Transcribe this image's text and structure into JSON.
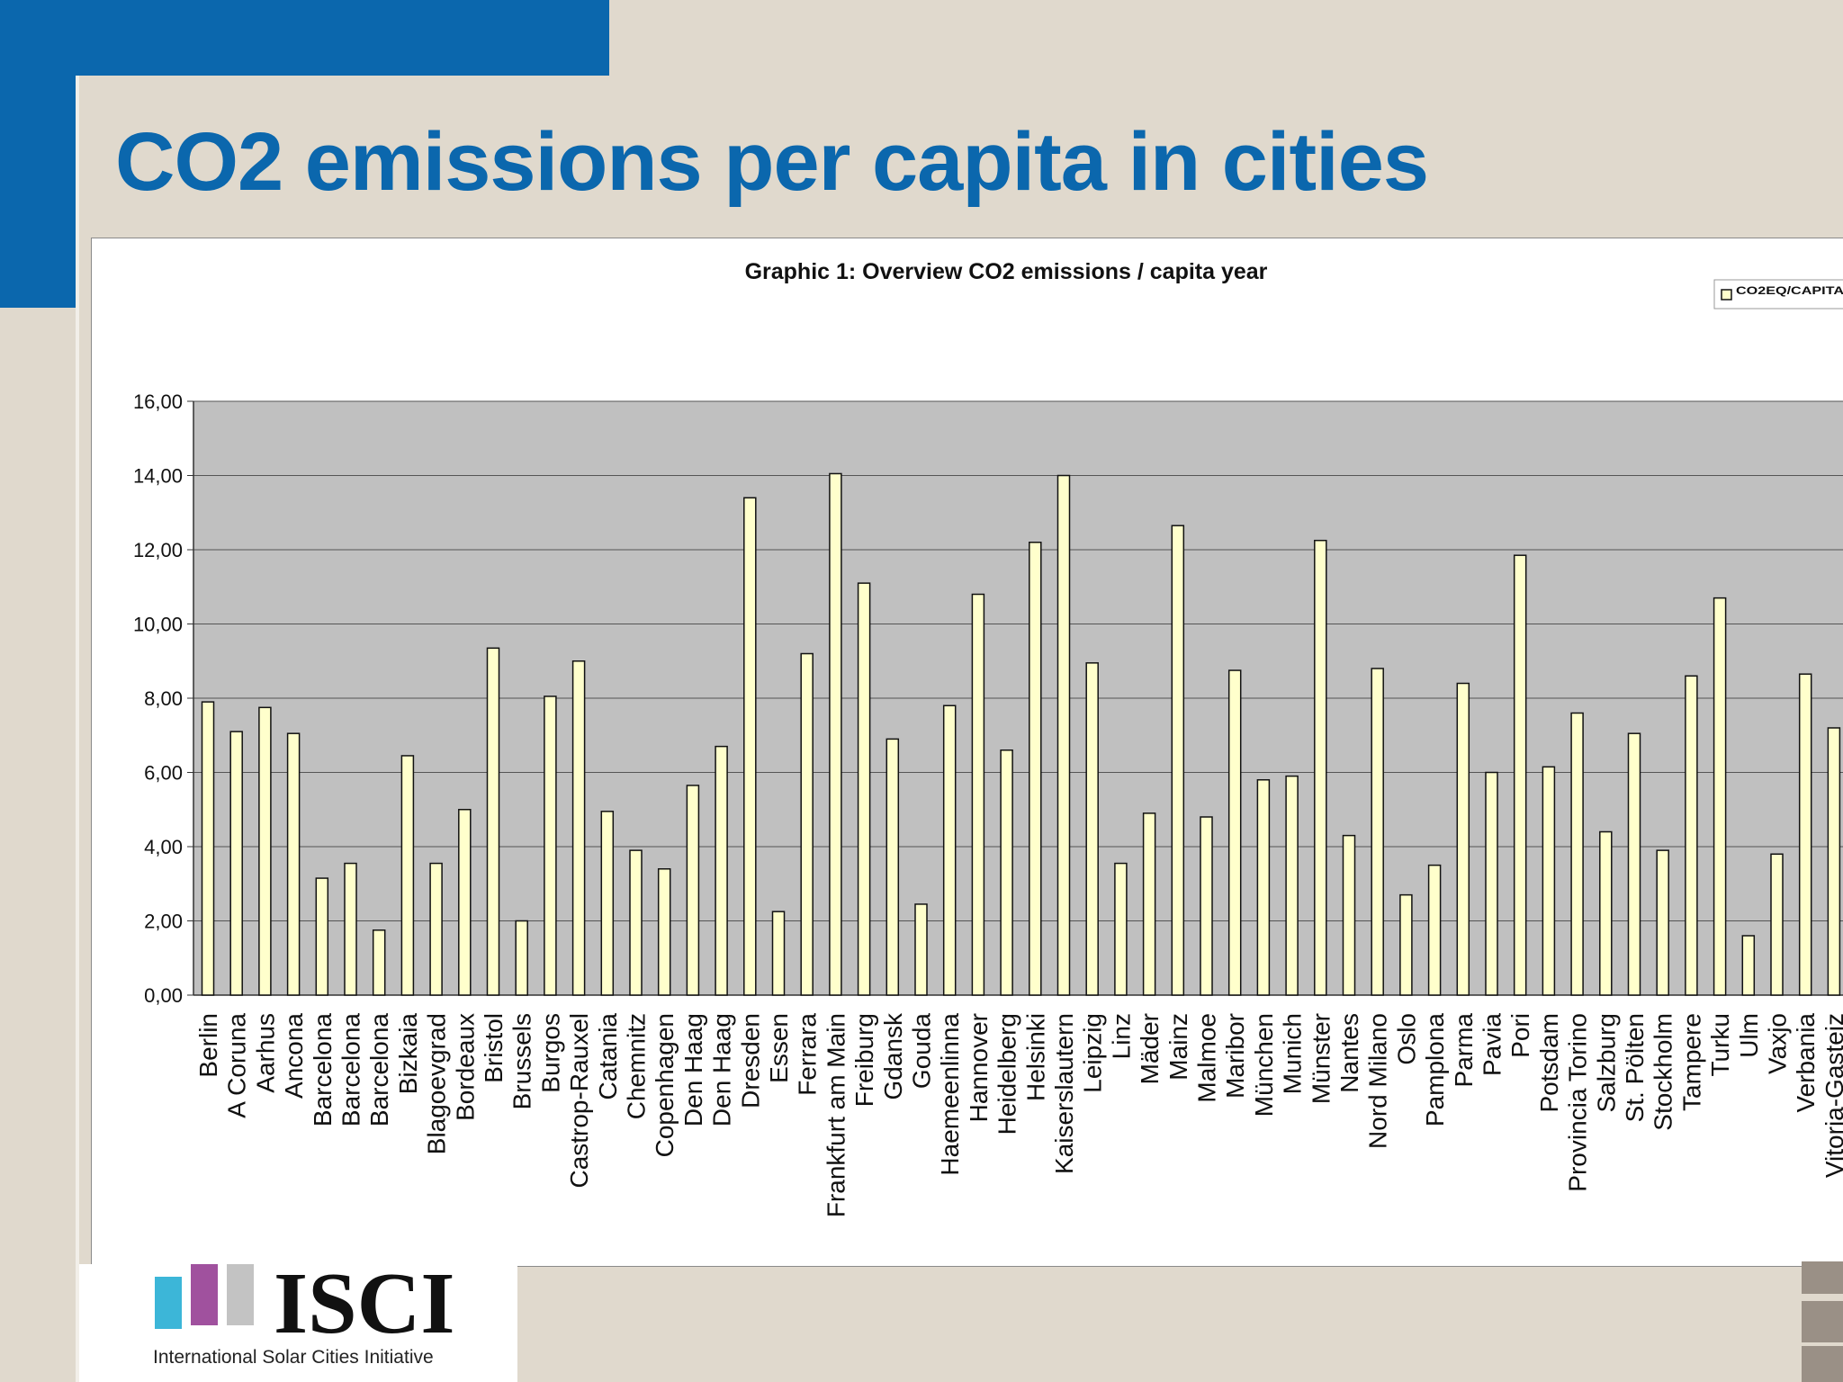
{
  "slide": {
    "title": "CO2 emissions per capita in cities"
  },
  "logo": {
    "text": "ISCI",
    "subtitle": "International Solar Cities Initiative"
  },
  "colors": {
    "brand_blue": "#0b67ad",
    "background": "#e0d9cd",
    "plot_area": "#c0c0c0",
    "bar_fill": "#ffffcc",
    "bar_stroke": "#111111"
  },
  "chart_data": {
    "type": "bar",
    "title": "Graphic 1: Overview CO2 emissions / capita year",
    "xlabel": "",
    "ylabel": "",
    "ylim": [
      0,
      16
    ],
    "yticks": [
      "0,00",
      "2,00",
      "4,00",
      "6,00",
      "8,00",
      "10,00",
      "12,00",
      "14,00",
      "16,00"
    ],
    "grid": true,
    "legend_position": "top-right",
    "series": [
      {
        "name": "CO2EQ/CAPITA",
        "values": [
          7.9,
          7.1,
          7.75,
          7.05,
          3.15,
          3.55,
          1.75,
          6.45,
          3.55,
          5.0,
          9.35,
          2.0,
          8.05,
          9.0,
          4.95,
          3.9,
          3.4,
          5.65,
          6.7,
          13.4,
          2.25,
          9.2,
          14.05,
          11.1,
          6.9,
          2.45,
          7.8,
          10.8,
          6.6,
          12.2,
          14.0,
          8.95,
          3.55,
          4.9,
          12.65,
          4.8,
          8.75,
          5.8,
          5.9,
          12.25,
          4.3,
          8.8,
          2.7,
          3.5,
          8.4,
          6.0,
          11.85,
          6.15,
          7.6,
          4.4,
          7.05,
          3.9,
          8.6,
          10.7,
          1.6,
          3.8,
          8.65,
          7.2
        ]
      }
    ],
    "categories": [
      "Berlin",
      "A Coruna",
      "Aarhus",
      "Ancona",
      "Barcelona",
      "Barcelona",
      "Barcelona",
      "Bizkaia",
      "Blagoevgrad",
      "Bordeaux",
      "Bristol",
      "Brussels",
      "Burgos",
      "Castrop-Rauxel",
      "Catania",
      "Chemnitz",
      "Copenhagen",
      "Den Haag",
      "Den Haag",
      "Dresden",
      "Essen",
      "Ferrara",
      "Frankfurt am Main",
      "Freiburg",
      "Gdansk",
      "Gouda",
      "Haemeenlinna",
      "Hannover",
      "Heidelberg",
      "Helsinki",
      "Kaiserslautern",
      "Leipzig",
      "Linz",
      "Mäder",
      "Mainz",
      "Malmoe",
      "Maribor",
      "München",
      "Munich",
      "Münster",
      "Nantes",
      "Nord Milano",
      "Oslo",
      "Pamplona",
      "Parma",
      "Pavia",
      "Pori",
      "Potsdam",
      "Provincia Torino",
      "Salzburg",
      "St. Pölten",
      "Stockholm",
      "Tampere",
      "Turku",
      "Ulm",
      "Vaxjo",
      "Verbania",
      "Vitoria-Gasteiz"
    ]
  }
}
